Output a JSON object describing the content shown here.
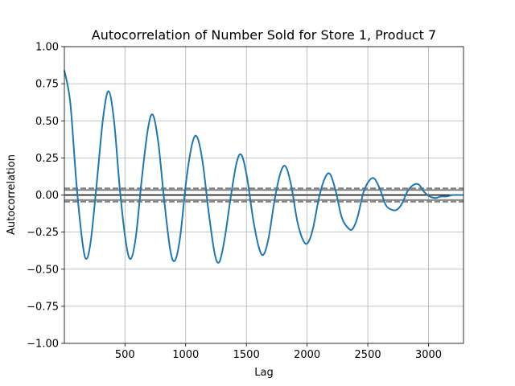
{
  "chart_data": {
    "type": "line",
    "title": "Autocorrelation of Number Sold for Store 1, Product 7",
    "xlabel": "Lag",
    "ylabel": "Autocorrelation",
    "xlim": [
      1,
      3288
    ],
    "ylim": [
      -1.0,
      1.0
    ],
    "xticks": [
      500,
      1000,
      1500,
      2000,
      2500,
      3000
    ],
    "yticks": [
      -1.0,
      -0.75,
      -0.5,
      -0.25,
      0.0,
      0.25,
      0.5,
      0.75,
      1.0
    ],
    "xtick_labels": [
      "500",
      "1000",
      "1500",
      "2000",
      "2500",
      "3000"
    ],
    "ytick_labels": [
      "−1.00",
      "−0.75",
      "−0.50",
      "−0.25",
      "0.00",
      "0.25",
      "0.50",
      "0.75",
      "1.00"
    ],
    "grid": true,
    "confidence_bands": {
      "inner": 0.034,
      "outer": 0.045,
      "color": "#808080"
    },
    "zero_line_color": "#000000",
    "series": [
      {
        "color": "#1f77b4",
        "x": [
          1,
          50,
          100,
          150,
          183,
          220,
          270,
          320,
          365,
          410,
          460,
          510,
          548,
          590,
          640,
          690,
          730,
          775,
          825,
          875,
          913,
          955,
          1005,
          1055,
          1095,
          1140,
          1190,
          1240,
          1278,
          1320,
          1370,
          1420,
          1460,
          1505,
          1555,
          1605,
          1643,
          1685,
          1735,
          1785,
          1825,
          1870,
          1920,
          1970,
          2008,
          2050,
          2100,
          2150,
          2190,
          2235,
          2285,
          2335,
          2373,
          2415,
          2465,
          2515,
          2555,
          2600,
          2650,
          2700,
          2738,
          2780,
          2830,
          2880,
          2920,
          2965,
          3010,
          3060,
          3100,
          3150,
          3200,
          3288
        ],
        "values": [
          0.84,
          0.62,
          0.08,
          -0.32,
          -0.43,
          -0.3,
          0.1,
          0.52,
          0.7,
          0.5,
          0.02,
          -0.33,
          -0.43,
          -0.28,
          0.12,
          0.45,
          0.54,
          0.35,
          -0.05,
          -0.38,
          -0.44,
          -0.28,
          0.1,
          0.35,
          0.39,
          0.22,
          -0.12,
          -0.4,
          -0.45,
          -0.3,
          -0.02,
          0.22,
          0.27,
          0.12,
          -0.16,
          -0.36,
          -0.4,
          -0.28,
          -0.02,
          0.16,
          0.19,
          0.06,
          -0.18,
          -0.31,
          -0.32,
          -0.22,
          -0.01,
          0.12,
          0.14,
          0.03,
          -0.15,
          -0.22,
          -0.23,
          -0.15,
          0.02,
          0.1,
          0.11,
          0.04,
          -0.07,
          -0.1,
          -0.1,
          -0.06,
          0.03,
          0.07,
          0.07,
          0.02,
          -0.01,
          -0.02,
          -0.01,
          -0.01,
          0.0,
          0.0
        ]
      }
    ]
  }
}
